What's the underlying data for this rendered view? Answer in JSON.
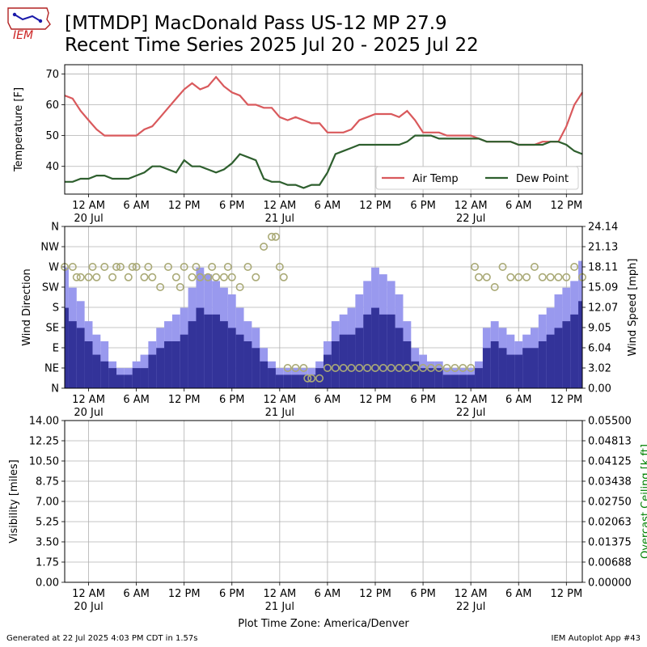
{
  "header": {
    "title_line1": "[MTMDP] MacDonald Pass US-12 MP 27.9",
    "title_line2": "Recent Time Series 2025 Jul 20 - 2025 Jul 22",
    "logo_text": "IEM",
    "logo_icon": "iowa-state-map-icon"
  },
  "footer": {
    "generated": "Generated at 22 Jul 2025 4:03 PM CDT in 1.57s",
    "app": "IEM Autoplot App #43",
    "timezone": "Plot Time Zone: America/Denver"
  },
  "colors": {
    "air_temp": "#d9595c",
    "dew_point": "#2e5f2e",
    "gust": "#9999ee",
    "wind_speed": "#333399",
    "wind_dir": "#aaaa77",
    "ceiling_label": "#008000"
  },
  "chart_data": [
    {
      "type": "line",
      "x_unit": "hours since 2025-07-19 21:00 America/Denver",
      "xlim": [
        0,
        65
      ],
      "ylim": [
        31,
        73
      ],
      "ylabel": "Temperature [F]",
      "yticks": [
        40,
        50,
        60,
        70
      ],
      "xticks": [
        {
          "hour": 3,
          "label": "12 AM",
          "date": "20 Jul"
        },
        {
          "hour": 9,
          "label": "6 AM",
          "date": ""
        },
        {
          "hour": 15,
          "label": "12 PM",
          "date": ""
        },
        {
          "hour": 21,
          "label": "6 PM",
          "date": ""
        },
        {
          "hour": 27,
          "label": "12 AM",
          "date": "21 Jul"
        },
        {
          "hour": 33,
          "label": "6 AM",
          "date": ""
        },
        {
          "hour": 39,
          "label": "12 PM",
          "date": ""
        },
        {
          "hour": 45,
          "label": "6 PM",
          "date": ""
        },
        {
          "hour": 51,
          "label": "12 AM",
          "date": "22 Jul"
        },
        {
          "hour": 57,
          "label": "6 AM",
          "date": ""
        },
        {
          "hour": 63,
          "label": "12 PM",
          "date": ""
        }
      ],
      "legend": {
        "position": "lower-right",
        "entries": [
          "Air Temp",
          "Dew Point"
        ]
      },
      "series": [
        {
          "name": "Air Temp",
          "x": [
            0,
            1,
            2,
            3,
            4,
            5,
            6,
            7,
            8,
            9,
            10,
            11,
            12,
            13,
            14,
            15,
            16,
            17,
            18,
            19,
            20,
            21,
            22,
            23,
            24,
            25,
            26,
            27,
            28,
            29,
            30,
            31,
            32,
            33,
            34,
            35,
            36,
            37,
            38,
            39,
            40,
            41,
            42,
            43,
            44,
            45,
            46,
            47,
            48,
            49,
            50,
            51,
            52,
            53,
            54,
            55,
            56,
            57,
            58,
            59,
            60,
            61,
            62,
            63,
            64,
            65
          ],
          "y": [
            63,
            62,
            58,
            55,
            52,
            50,
            50,
            50,
            50,
            50,
            52,
            53,
            56,
            59,
            62,
            65,
            67,
            65,
            66,
            69,
            66,
            64,
            63,
            60,
            60,
            59,
            59,
            56,
            55,
            56,
            55,
            54,
            54,
            51,
            51,
            51,
            52,
            55,
            56,
            57,
            57,
            57,
            56,
            58,
            55,
            51,
            51,
            51,
            50,
            50,
            50,
            50,
            49,
            48,
            48,
            48,
            48,
            47,
            47,
            47,
            48,
            48,
            48,
            53,
            60,
            64
          ]
        },
        {
          "name": "Dew Point",
          "x": [
            0,
            1,
            2,
            3,
            4,
            5,
            6,
            7,
            8,
            9,
            10,
            11,
            12,
            13,
            14,
            15,
            16,
            17,
            18,
            19,
            20,
            21,
            22,
            23,
            24,
            25,
            26,
            27,
            28,
            29,
            30,
            31,
            32,
            33,
            34,
            35,
            36,
            37,
            38,
            39,
            40,
            41,
            42,
            43,
            44,
            45,
            46,
            47,
            48,
            49,
            50,
            51,
            52,
            53,
            54,
            55,
            56,
            57,
            58,
            59,
            60,
            61,
            62,
            63,
            64,
            65
          ],
          "y": [
            35,
            35,
            36,
            36,
            37,
            37,
            36,
            36,
            36,
            37,
            38,
            40,
            40,
            39,
            38,
            42,
            40,
            40,
            39,
            38,
            39,
            41,
            44,
            43,
            42,
            36,
            35,
            35,
            34,
            34,
            33,
            34,
            34,
            38,
            44,
            45,
            46,
            47,
            47,
            47,
            47,
            47,
            47,
            48,
            50,
            50,
            50,
            49,
            49,
            49,
            49,
            49,
            49,
            48,
            48,
            48,
            48,
            47,
            47,
            47,
            47,
            48,
            48,
            47,
            45,
            44
          ]
        }
      ]
    },
    {
      "type": "bar",
      "x_unit": "hours since 2025-07-19 21:00 America/Denver",
      "xlim": [
        0,
        65
      ],
      "ylim_direction": [
        0,
        360
      ],
      "ylim_speed": [
        0,
        24.14
      ],
      "ylabel_left": "Wind Direction",
      "ylabel_right": "Wind Speed [mph]",
      "direction_ticks": [
        "N",
        "NE",
        "E",
        "SE",
        "S",
        "SW",
        "W",
        "NW",
        "N"
      ],
      "speed_ticks": [
        "0.00",
        "3.02",
        "6.04",
        "9.05",
        "12.07",
        "15.09",
        "18.11",
        "21.13",
        "24.14"
      ],
      "series": [
        {
          "name": "Wind Gust",
          "x": [
            0,
            1,
            2,
            3,
            4,
            5,
            6,
            7,
            8,
            9,
            10,
            11,
            12,
            13,
            14,
            15,
            16,
            17,
            18,
            19,
            20,
            21,
            22,
            23,
            24,
            25,
            26,
            27,
            28,
            29,
            30,
            31,
            32,
            33,
            34,
            35,
            36,
            37,
            38,
            39,
            40,
            41,
            42,
            43,
            44,
            45,
            46,
            47,
            48,
            49,
            50,
            51,
            52,
            53,
            54,
            55,
            56,
            57,
            58,
            59,
            60,
            61,
            62,
            63,
            64,
            65
          ],
          "values": [
            18,
            15,
            13,
            10,
            8,
            7,
            4,
            3,
            3,
            4,
            5,
            7,
            9,
            10,
            11,
            12,
            15,
            18,
            17,
            16,
            15,
            14,
            12,
            10,
            9,
            6,
            4,
            3,
            3,
            3,
            3,
            3,
            4,
            7,
            10,
            11,
            12,
            14,
            16,
            18,
            17,
            16,
            14,
            10,
            6,
            5,
            4,
            4,
            3,
            3,
            3,
            3,
            4,
            9,
            10,
            9,
            8,
            7,
            8,
            9,
            11,
            12,
            14,
            15,
            16,
            19
          ]
        },
        {
          "name": "Wind Speed",
          "x": [
            0,
            1,
            2,
            3,
            4,
            5,
            6,
            7,
            8,
            9,
            10,
            11,
            12,
            13,
            14,
            15,
            16,
            17,
            18,
            19,
            20,
            21,
            22,
            23,
            24,
            25,
            26,
            27,
            28,
            29,
            30,
            31,
            32,
            33,
            34,
            35,
            36,
            37,
            38,
            39,
            40,
            41,
            42,
            43,
            44,
            45,
            46,
            47,
            48,
            49,
            50,
            51,
            52,
            53,
            54,
            55,
            56,
            57,
            58,
            59,
            60,
            61,
            62,
            63,
            64,
            65
          ],
          "values": [
            12,
            10,
            9,
            7,
            5,
            4,
            3,
            2,
            2,
            3,
            3,
            5,
            6,
            7,
            7,
            8,
            10,
            12,
            11,
            11,
            10,
            9,
            8,
            7,
            6,
            4,
            3,
            2,
            2,
            2,
            2,
            2,
            3,
            5,
            7,
            8,
            8,
            9,
            11,
            12,
            11,
            11,
            9,
            7,
            4,
            3,
            3,
            3,
            2,
            2,
            2,
            2,
            3,
            6,
            7,
            6,
            5,
            5,
            6,
            6,
            7,
            8,
            9,
            10,
            11,
            13
          ]
        },
        {
          "name": "Wind Direction",
          "type": "scatter",
          "x": [
            0,
            1,
            1.5,
            2,
            3,
            3.5,
            4,
            5,
            6,
            6.5,
            7,
            8,
            8.5,
            9,
            10,
            10.5,
            11,
            12,
            13,
            14,
            14.5,
            15,
            16,
            16.5,
            17,
            18,
            18.5,
            19,
            20,
            20.5,
            21,
            22,
            23,
            24,
            25,
            26,
            26.5,
            27,
            27.5,
            28,
            29,
            30,
            30.5,
            31,
            32,
            33,
            34,
            35,
            36,
            37,
            38,
            39,
            40,
            41,
            42,
            43,
            44,
            45,
            46,
            47,
            48,
            49,
            50,
            51,
            51.5,
            52,
            53,
            54,
            55,
            56,
            57,
            58,
            59,
            60,
            61,
            62,
            63,
            64,
            65
          ],
          "values": [
            270,
            270,
            247,
            247,
            247,
            270,
            247,
            270,
            247,
            270,
            270,
            247,
            270,
            270,
            247,
            270,
            247,
            225,
            270,
            247,
            225,
            270,
            247,
            270,
            247,
            247,
            270,
            247,
            247,
            270,
            247,
            225,
            270,
            247,
            315,
            337,
            337,
            270,
            247,
            45,
            45,
            45,
            22,
            22,
            22,
            45,
            45,
            45,
            45,
            45,
            45,
            45,
            45,
            45,
            45,
            45,
            45,
            45,
            45,
            45,
            45,
            45,
            45,
            45,
            270,
            247,
            247,
            225,
            270,
            247,
            247,
            247,
            270,
            247,
            247,
            247,
            247,
            270,
            247
          ]
        }
      ]
    },
    {
      "type": "line",
      "x_unit": "hours since 2025-07-19 21:00 America/Denver",
      "xlim": [
        0,
        65
      ],
      "ylabel_left": "Visibility [miles]",
      "ylabel_right": "Overcast Ceiling [k ft]",
      "ylim_left": [
        0,
        14
      ],
      "ylim_right": [
        0,
        0.055
      ],
      "left_ticks": [
        "0.00",
        "1.75",
        "3.50",
        "5.25",
        "7.00",
        "8.75",
        "10.50",
        "12.25",
        "14.00"
      ],
      "right_ticks": [
        "0.00000",
        "0.00688",
        "0.01375",
        "0.02063",
        "0.02750",
        "0.03438",
        "0.04125",
        "0.04813",
        "0.05500"
      ],
      "series": []
    }
  ]
}
